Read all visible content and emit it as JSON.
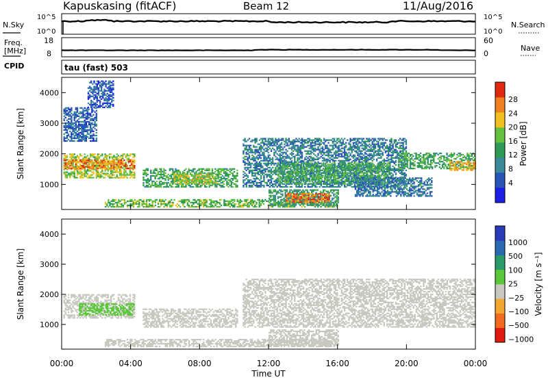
{
  "header": {
    "station": "Kapuskasing (fitACF)",
    "beam": "Beam 12",
    "date": "11/Aug/2016"
  },
  "noise_panel": {
    "left_label": "N.Sky",
    "left_ticks": [
      "10^5",
      "10^0"
    ],
    "right_label": "N.Search",
    "right_ticks": [
      "10^5",
      "10^0"
    ]
  },
  "freq_panel": {
    "left_label_line1": "Freq.",
    "left_label_line2": "[MHz]",
    "left_ticks": [
      "18",
      "8"
    ],
    "right_label": "Nave",
    "right_ticks": [
      "60",
      "0"
    ]
  },
  "cpid": {
    "label": "CPID",
    "value": "tau (fast) 503"
  },
  "power_panel": {
    "ylabel": "Slant Range [km]",
    "yticks": [
      "4000",
      "3000",
      "2000",
      "1000"
    ],
    "colorbar_label": "Power [dB]",
    "colorbar_ticks": [
      "28",
      "24",
      "20",
      "16",
      "12",
      "8",
      "4"
    ],
    "colors": [
      "#1e1ee6",
      "#2a55b8",
      "#3a8a9a",
      "#2f9a55",
      "#66c040",
      "#f0c020",
      "#f08020",
      "#e02a10"
    ]
  },
  "velocity_panel": {
    "ylabel": "Slant Range [km]",
    "yticks": [
      "4000",
      "3000",
      "2000",
      "1000"
    ],
    "colorbar_label": "Velocity [m s⁻¹]",
    "colorbar_ticks": [
      "1000",
      "500",
      "100",
      "25",
      "−25",
      "−100",
      "−500",
      "−1000"
    ],
    "colors": [
      "#2a3ab8",
      "#2a6ab0",
      "#2a9a6a",
      "#5ac83a",
      "#c8c8c0",
      "#f0a830",
      "#f06a20",
      "#e01a10"
    ]
  },
  "x_axis": {
    "ticks": [
      "00:00",
      "04:00",
      "08:00",
      "12:00",
      "16:00",
      "20:00",
      "00:00"
    ],
    "label": "Time UT"
  },
  "chart_data": {
    "type": "heatmap",
    "title": "Kapuskasing (fitACF)  Beam 12  11/Aug/2016",
    "xlabel": "Time UT",
    "ylabel": "Slant Range [km]",
    "xlim": [
      0,
      24
    ],
    "ylim": [
      180,
      4500
    ],
    "grid": false,
    "panels": [
      {
        "name": "Power",
        "units": "dB",
        "colorbar": {
          "range": [
            0,
            30
          ],
          "ticks": [
            28,
            24,
            20,
            16,
            12,
            8,
            4
          ]
        },
        "regions": [
          {
            "t": [
              0.1,
              4.2
            ],
            "r": [
              1200,
              2000
            ],
            "level": 18
          },
          {
            "t": [
              0.1,
              4.2
            ],
            "r": [
              1500,
              1800
            ],
            "level": 24
          },
          {
            "t": [
              0.1,
              2.0
            ],
            "r": [
              2400,
              3500
            ],
            "level": 7
          },
          {
            "t": [
              1.5,
              3.0
            ],
            "r": [
              3500,
              4400
            ],
            "level": 6
          },
          {
            "t": [
              4.7,
              10.2
            ],
            "r": [
              900,
              1500
            ],
            "level": 14
          },
          {
            "t": [
              6.5,
              9.0
            ],
            "r": [
              1000,
              1350
            ],
            "level": 19
          },
          {
            "t": [
              2.5,
              16.0
            ],
            "r": [
              250,
              500
            ],
            "level": 16
          },
          {
            "t": [
              12.0,
              16.0
            ],
            "r": [
              300,
              800
            ],
            "level": 12
          },
          {
            "t": [
              13.0,
              15.5
            ],
            "r": [
              400,
              700
            ],
            "level": 25
          },
          {
            "t": [
              10.5,
              20.0
            ],
            "r": [
              900,
              2500
            ],
            "level": 9
          },
          {
            "t": [
              12.5,
              19.0
            ],
            "r": [
              1000,
              1700
            ],
            "level": 14
          },
          {
            "t": [
              19.5,
              24.0
            ],
            "r": [
              1500,
              2000
            ],
            "level": 14
          },
          {
            "t": [
              22.5,
              24.0
            ],
            "r": [
              1450,
              1750
            ],
            "level": 22
          },
          {
            "t": [
              17.0,
              21.5
            ],
            "r": [
              600,
              1200
            ],
            "level": 8
          }
        ]
      },
      {
        "name": "Velocity",
        "units": "m s-1",
        "colorbar": {
          "ticks": [
            1000,
            500,
            100,
            25,
            -25,
            -100,
            -500,
            -1000
          ]
        },
        "regions": [
          {
            "t": [
              0.1,
              4.2
            ],
            "r": [
              1200,
              2000
            ],
            "level": 0
          },
          {
            "t": [
              1.0,
              4.2
            ],
            "r": [
              1300,
              1700
            ],
            "level": 150
          },
          {
            "t": [
              4.7,
              10.2
            ],
            "r": [
              900,
              1500
            ],
            "level": 0
          },
          {
            "t": [
              2.5,
              16.0
            ],
            "r": [
              250,
              500
            ],
            "level": 0
          },
          {
            "t": [
              10.5,
              24.0
            ],
            "r": [
              900,
              2500
            ],
            "level": 0
          },
          {
            "t": [
              12.0,
              16.0
            ],
            "r": [
              300,
              800
            ],
            "level": 0
          }
        ]
      }
    ],
    "noise": {
      "N.Sky": "~10^5 (flat)",
      "N.Search": "~10^5 (flat)"
    },
    "frequency_MHz": 10,
    "nave": 12
  }
}
